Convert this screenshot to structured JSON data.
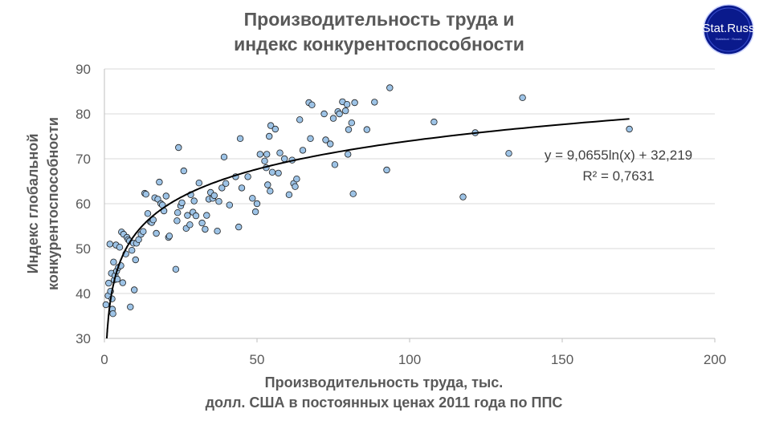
{
  "logo": {
    "text": "Stat.Russ",
    "sub": "Statistical · Russia"
  },
  "chart_data": {
    "type": "scatter",
    "title": [
      "Производительность труда и",
      "индекс конкурентоспособности"
    ],
    "xlabel": [
      "Производительность труда, тыс.",
      "долл. США в постоянных ценах 2011 года по ППС"
    ],
    "ylabel": [
      "Индекс глобальной",
      "конкурентоспособности"
    ],
    "xlim": [
      0,
      200
    ],
    "ylim": [
      30,
      90
    ],
    "xticks": [
      "0",
      "50",
      "100",
      "150",
      "200"
    ],
    "yticks": [
      "30",
      "40",
      "50",
      "60",
      "70",
      "80",
      "90"
    ],
    "grid": "horizontal",
    "trendline": {
      "type": "log",
      "a": 9.0655,
      "b": 32.219,
      "equation": "y = 9,0655ln(x) + 32,219",
      "r2": "R² = 0,7631"
    },
    "points": [
      [
        0.5,
        37.5
      ],
      [
        1.2,
        39.5
      ],
      [
        1.4,
        42.3
      ],
      [
        1.8,
        51
      ],
      [
        2.0,
        40.5
      ],
      [
        2.3,
        44.5
      ],
      [
        2.5,
        38.8
      ],
      [
        2.6,
        36.5
      ],
      [
        2.8,
        35.5
      ],
      [
        3.0,
        47
      ],
      [
        3.2,
        43
      ],
      [
        3.5,
        44
      ],
      [
        3.8,
        50.8
      ],
      [
        4.0,
        45
      ],
      [
        4.2,
        43.2
      ],
      [
        4.6,
        45.8
      ],
      [
        5.0,
        50.3
      ],
      [
        5.4,
        46.2
      ],
      [
        5.6,
        53.7
      ],
      [
        6.0,
        42.4
      ],
      [
        6.3,
        53.2
      ],
      [
        7.0,
        48.8
      ],
      [
        7.4,
        52.5
      ],
      [
        7.8,
        52
      ],
      [
        8.2,
        51.7
      ],
      [
        8.5,
        37
      ],
      [
        9.0,
        49.6
      ],
      [
        9.5,
        51.2
      ],
      [
        9.8,
        40.8
      ],
      [
        10.2,
        47.5
      ],
      [
        10.5,
        51.2
      ],
      [
        11.2,
        52
      ],
      [
        12.0,
        53.2
      ],
      [
        12.7,
        53.8
      ],
      [
        13.2,
        62.3
      ],
      [
        13.6,
        62.1
      ],
      [
        14.2,
        57.8
      ],
      [
        15.0,
        56
      ],
      [
        15.5,
        55.8
      ],
      [
        16.0,
        56.4
      ],
      [
        16.5,
        61.3
      ],
      [
        17.0,
        53.4
      ],
      [
        17.5,
        61
      ],
      [
        18.0,
        64.8
      ],
      [
        18.5,
        60
      ],
      [
        19.0,
        59.7
      ],
      [
        19.5,
        58.4
      ],
      [
        20.2,
        61.7
      ],
      [
        21.0,
        52.5
      ],
      [
        21.3,
        52.8
      ],
      [
        23.4,
        45.4
      ],
      [
        23.8,
        56.2
      ],
      [
        24.0,
        58
      ],
      [
        24.3,
        72.5
      ],
      [
        25.0,
        59.5
      ],
      [
        25.4,
        60.2
      ],
      [
        26.0,
        67.3
      ],
      [
        26.8,
        54.5
      ],
      [
        27.2,
        57.4
      ],
      [
        28.0,
        55.3
      ],
      [
        28.3,
        62
      ],
      [
        29.0,
        58.1
      ],
      [
        29.4,
        60.6
      ],
      [
        30.0,
        57.3
      ],
      [
        31.0,
        64.6
      ],
      [
        32.0,
        55.7
      ],
      [
        33.0,
        54.3
      ],
      [
        33.5,
        57.4
      ],
      [
        34.2,
        61
      ],
      [
        34.8,
        62.5
      ],
      [
        35.5,
        61.2
      ],
      [
        36.0,
        61.8
      ],
      [
        37.0,
        53.9
      ],
      [
        37.5,
        60.5
      ],
      [
        38.5,
        63.5
      ],
      [
        39.2,
        70.4
      ],
      [
        39.8,
        64.5
      ],
      [
        41.0,
        59.7
      ],
      [
        43.0,
        66
      ],
      [
        44.0,
        54.8
      ],
      [
        44.5,
        74.5
      ],
      [
        45.0,
        63.5
      ],
      [
        47.0,
        66
      ],
      [
        48.5,
        61.2
      ],
      [
        49.5,
        58.2
      ],
      [
        50.0,
        60
      ],
      [
        51.0,
        71
      ],
      [
        52.5,
        69.5
      ],
      [
        53.0,
        68
      ],
      [
        53.2,
        71
      ],
      [
        53.5,
        64.2
      ],
      [
        54.0,
        75
      ],
      [
        54.3,
        62.8
      ],
      [
        54.5,
        77.4
      ],
      [
        55.0,
        67
      ],
      [
        56.0,
        76.6
      ],
      [
        57.0,
        66.8
      ],
      [
        57.5,
        71.3
      ],
      [
        59.0,
        70
      ],
      [
        60.5,
        62
      ],
      [
        61.5,
        69.7
      ],
      [
        62.0,
        64.5
      ],
      [
        62.5,
        63.8
      ],
      [
        63.0,
        65.5
      ],
      [
        64.0,
        78.7
      ],
      [
        65.0,
        71.9
      ],
      [
        67.0,
        82.5
      ],
      [
        67.5,
        74.5
      ],
      [
        68.0,
        82
      ],
      [
        72.0,
        80
      ],
      [
        72.5,
        74.2
      ],
      [
        74.0,
        73.3
      ],
      [
        75.0,
        79
      ],
      [
        75.5,
        68.7
      ],
      [
        76.5,
        80.5
      ],
      [
        77.0,
        80
      ],
      [
        78.0,
        82.7
      ],
      [
        79.0,
        80.7
      ],
      [
        79.5,
        82.1
      ],
      [
        79.8,
        71
      ],
      [
        80.0,
        76.5
      ],
      [
        81.0,
        78
      ],
      [
        81.5,
        62.2
      ],
      [
        82.0,
        82.5
      ],
      [
        86.0,
        76.5
      ],
      [
        88.5,
        82.6
      ],
      [
        92.5,
        67.5
      ],
      [
        93.5,
        85.8
      ],
      [
        108.0,
        78.2
      ],
      [
        117.5,
        61.5
      ],
      [
        121.5,
        75.8
      ],
      [
        132.5,
        71.2
      ],
      [
        137.0,
        83.6
      ],
      [
        172.0,
        76.6
      ]
    ]
  }
}
